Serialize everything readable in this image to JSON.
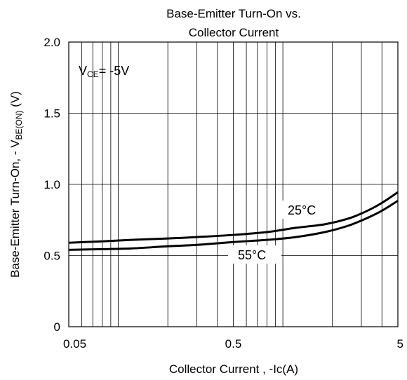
{
  "chart_data": {
    "type": "line",
    "title_line1": "Base-Emitter Turn-On  vs.",
    "title_line2": "Collector Current",
    "xlabel": "Collector Current , -Ic(A)",
    "ylabel_main": "Base-Emitter Turn-On, - V",
    "ylabel_sub": "BE(ON)",
    "ylabel_unit": " (V)",
    "x_scale": "log",
    "xlim": [
      0.05,
      5
    ],
    "ylim": [
      0,
      2.0
    ],
    "x_ticks": [
      {
        "value": 0.05,
        "label": "0.05"
      },
      {
        "value": 0.5,
        "label": "0.5"
      },
      {
        "value": 5,
        "label": "5"
      }
    ],
    "y_ticks": [
      {
        "value": 0,
        "label": "0"
      },
      {
        "value": 0.5,
        "label": "0.5"
      },
      {
        "value": 1.0,
        "label": "1.0"
      },
      {
        "value": 1.5,
        "label": "1.5"
      },
      {
        "value": 2.0,
        "label": "2.0"
      }
    ],
    "grid": true,
    "annotation": {
      "main": "V",
      "sub": "CE",
      "rest": "= -5V"
    },
    "series": [
      {
        "name": "25°C",
        "x": [
          0.05,
          0.08,
          0.12,
          0.2,
          0.3,
          0.5,
          0.8,
          1.2,
          1.8,
          2.5,
          3.2,
          4.0,
          5.0
        ],
        "y": [
          0.59,
          0.6,
          0.61,
          0.62,
          0.63,
          0.645,
          0.665,
          0.695,
          0.72,
          0.76,
          0.81,
          0.87,
          0.945
        ]
      },
      {
        "name": "55°C",
        "x": [
          0.05,
          0.08,
          0.12,
          0.2,
          0.3,
          0.5,
          0.8,
          1.2,
          1.8,
          2.5,
          3.2,
          4.0,
          5.0
        ],
        "y": [
          0.54,
          0.545,
          0.55,
          0.565,
          0.575,
          0.595,
          0.61,
          0.63,
          0.665,
          0.71,
          0.76,
          0.815,
          0.885
        ]
      }
    ]
  }
}
